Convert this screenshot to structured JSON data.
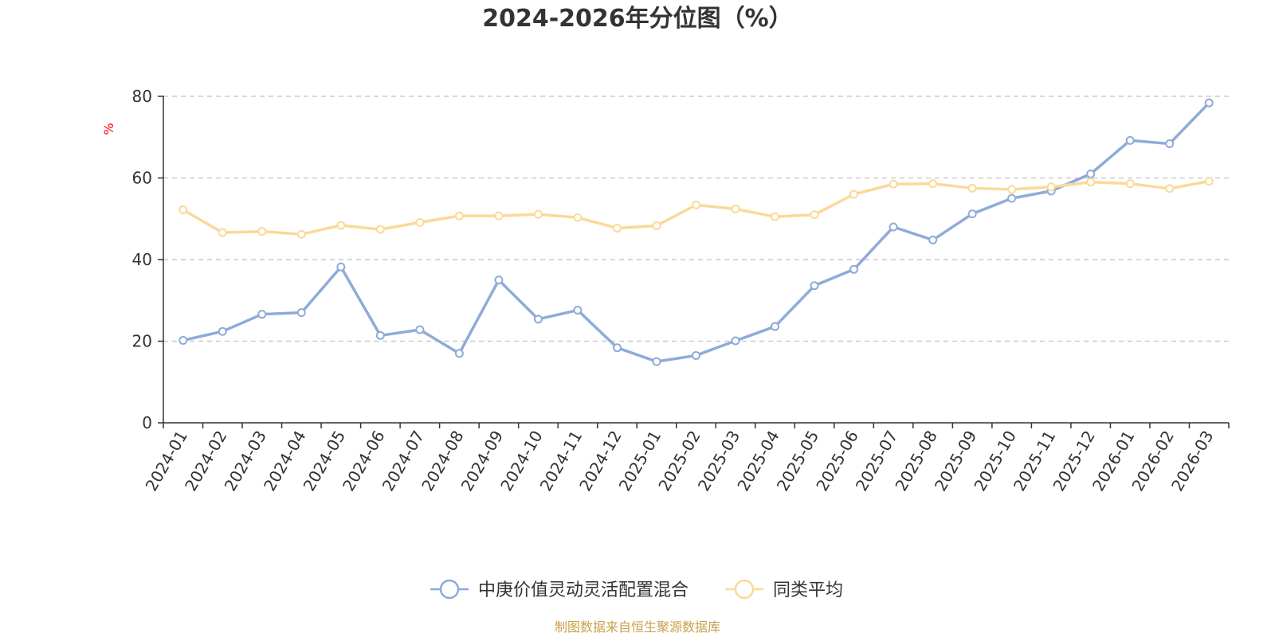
{
  "chart_data": {
    "type": "line",
    "title": "2024-2026年分位图（%）",
    "ylabel": "%",
    "xlabel": "",
    "ylim": [
      0,
      80
    ],
    "yticks": [
      0,
      20,
      40,
      60,
      80
    ],
    "grid": true,
    "legend_position": "bottom",
    "categories": [
      "2024-01",
      "2024-02",
      "2024-03",
      "2024-04",
      "2024-05",
      "2024-06",
      "2024-07",
      "2024-08",
      "2024-09",
      "2024-10",
      "2024-11",
      "2024-12",
      "2025-01",
      "2025-02",
      "2025-03",
      "2025-04",
      "2025-05",
      "2025-06",
      "2025-07",
      "2025-08",
      "2025-09",
      "2025-10",
      "2025-11",
      "2025-12",
      "2026-01",
      "2026-02",
      "2026-03"
    ],
    "series": [
      {
        "name": "中庚价值灵动灵活配置混合",
        "color": "#8eabd9",
        "values": [
          20.2,
          22.4,
          26.6,
          27.0,
          38.2,
          21.4,
          22.8,
          17.0,
          35.0,
          25.4,
          27.6,
          18.4,
          15.0,
          16.5,
          20.1,
          23.6,
          33.6,
          37.6,
          48.0,
          44.8,
          51.2,
          55.0,
          56.8,
          61.0,
          69.2,
          68.4,
          78.4
        ]
      },
      {
        "name": "同类平均",
        "color": "#fbd999",
        "values": [
          52.2,
          46.6,
          46.9,
          46.2,
          48.4,
          47.4,
          49.1,
          50.7,
          50.7,
          51.1,
          50.3,
          47.7,
          48.3,
          53.4,
          52.4,
          50.5,
          51.0,
          56.0,
          58.5,
          58.6,
          57.5,
          57.2,
          57.8,
          59.0,
          58.6,
          57.4,
          59.2
        ]
      }
    ]
  },
  "colors": {
    "unit_label": "#ff0000",
    "source_text": "#c9a14a",
    "axis": "#333333",
    "grid": "#cccccc"
  },
  "source": "制图数据来自恒生聚源数据库"
}
